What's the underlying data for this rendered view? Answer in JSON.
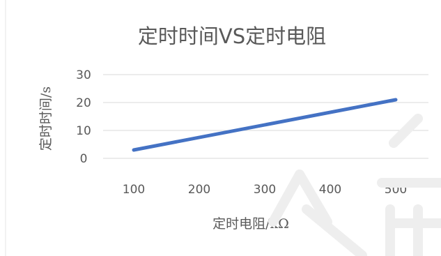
{
  "chart_data": {
    "type": "line",
    "title": "定时时间VS定时电阻",
    "xlabel": "定时电阻/kΩ",
    "ylabel": "定时时间/s",
    "x": [
      100,
      500
    ],
    "categories": [
      "100",
      "200",
      "300",
      "400",
      "500"
    ],
    "series": [
      {
        "values": [
          3,
          21
        ]
      }
    ],
    "xlim": [
      100,
      500
    ],
    "ylim": [
      0,
      30
    ],
    "yticks": [
      "0",
      "10",
      "20",
      "30"
    ],
    "grid": true,
    "legend": "none"
  },
  "colors": {
    "line": "#4472C4",
    "grid": "#d9d9d9",
    "text": "#595959",
    "watermark": "#efefef"
  }
}
